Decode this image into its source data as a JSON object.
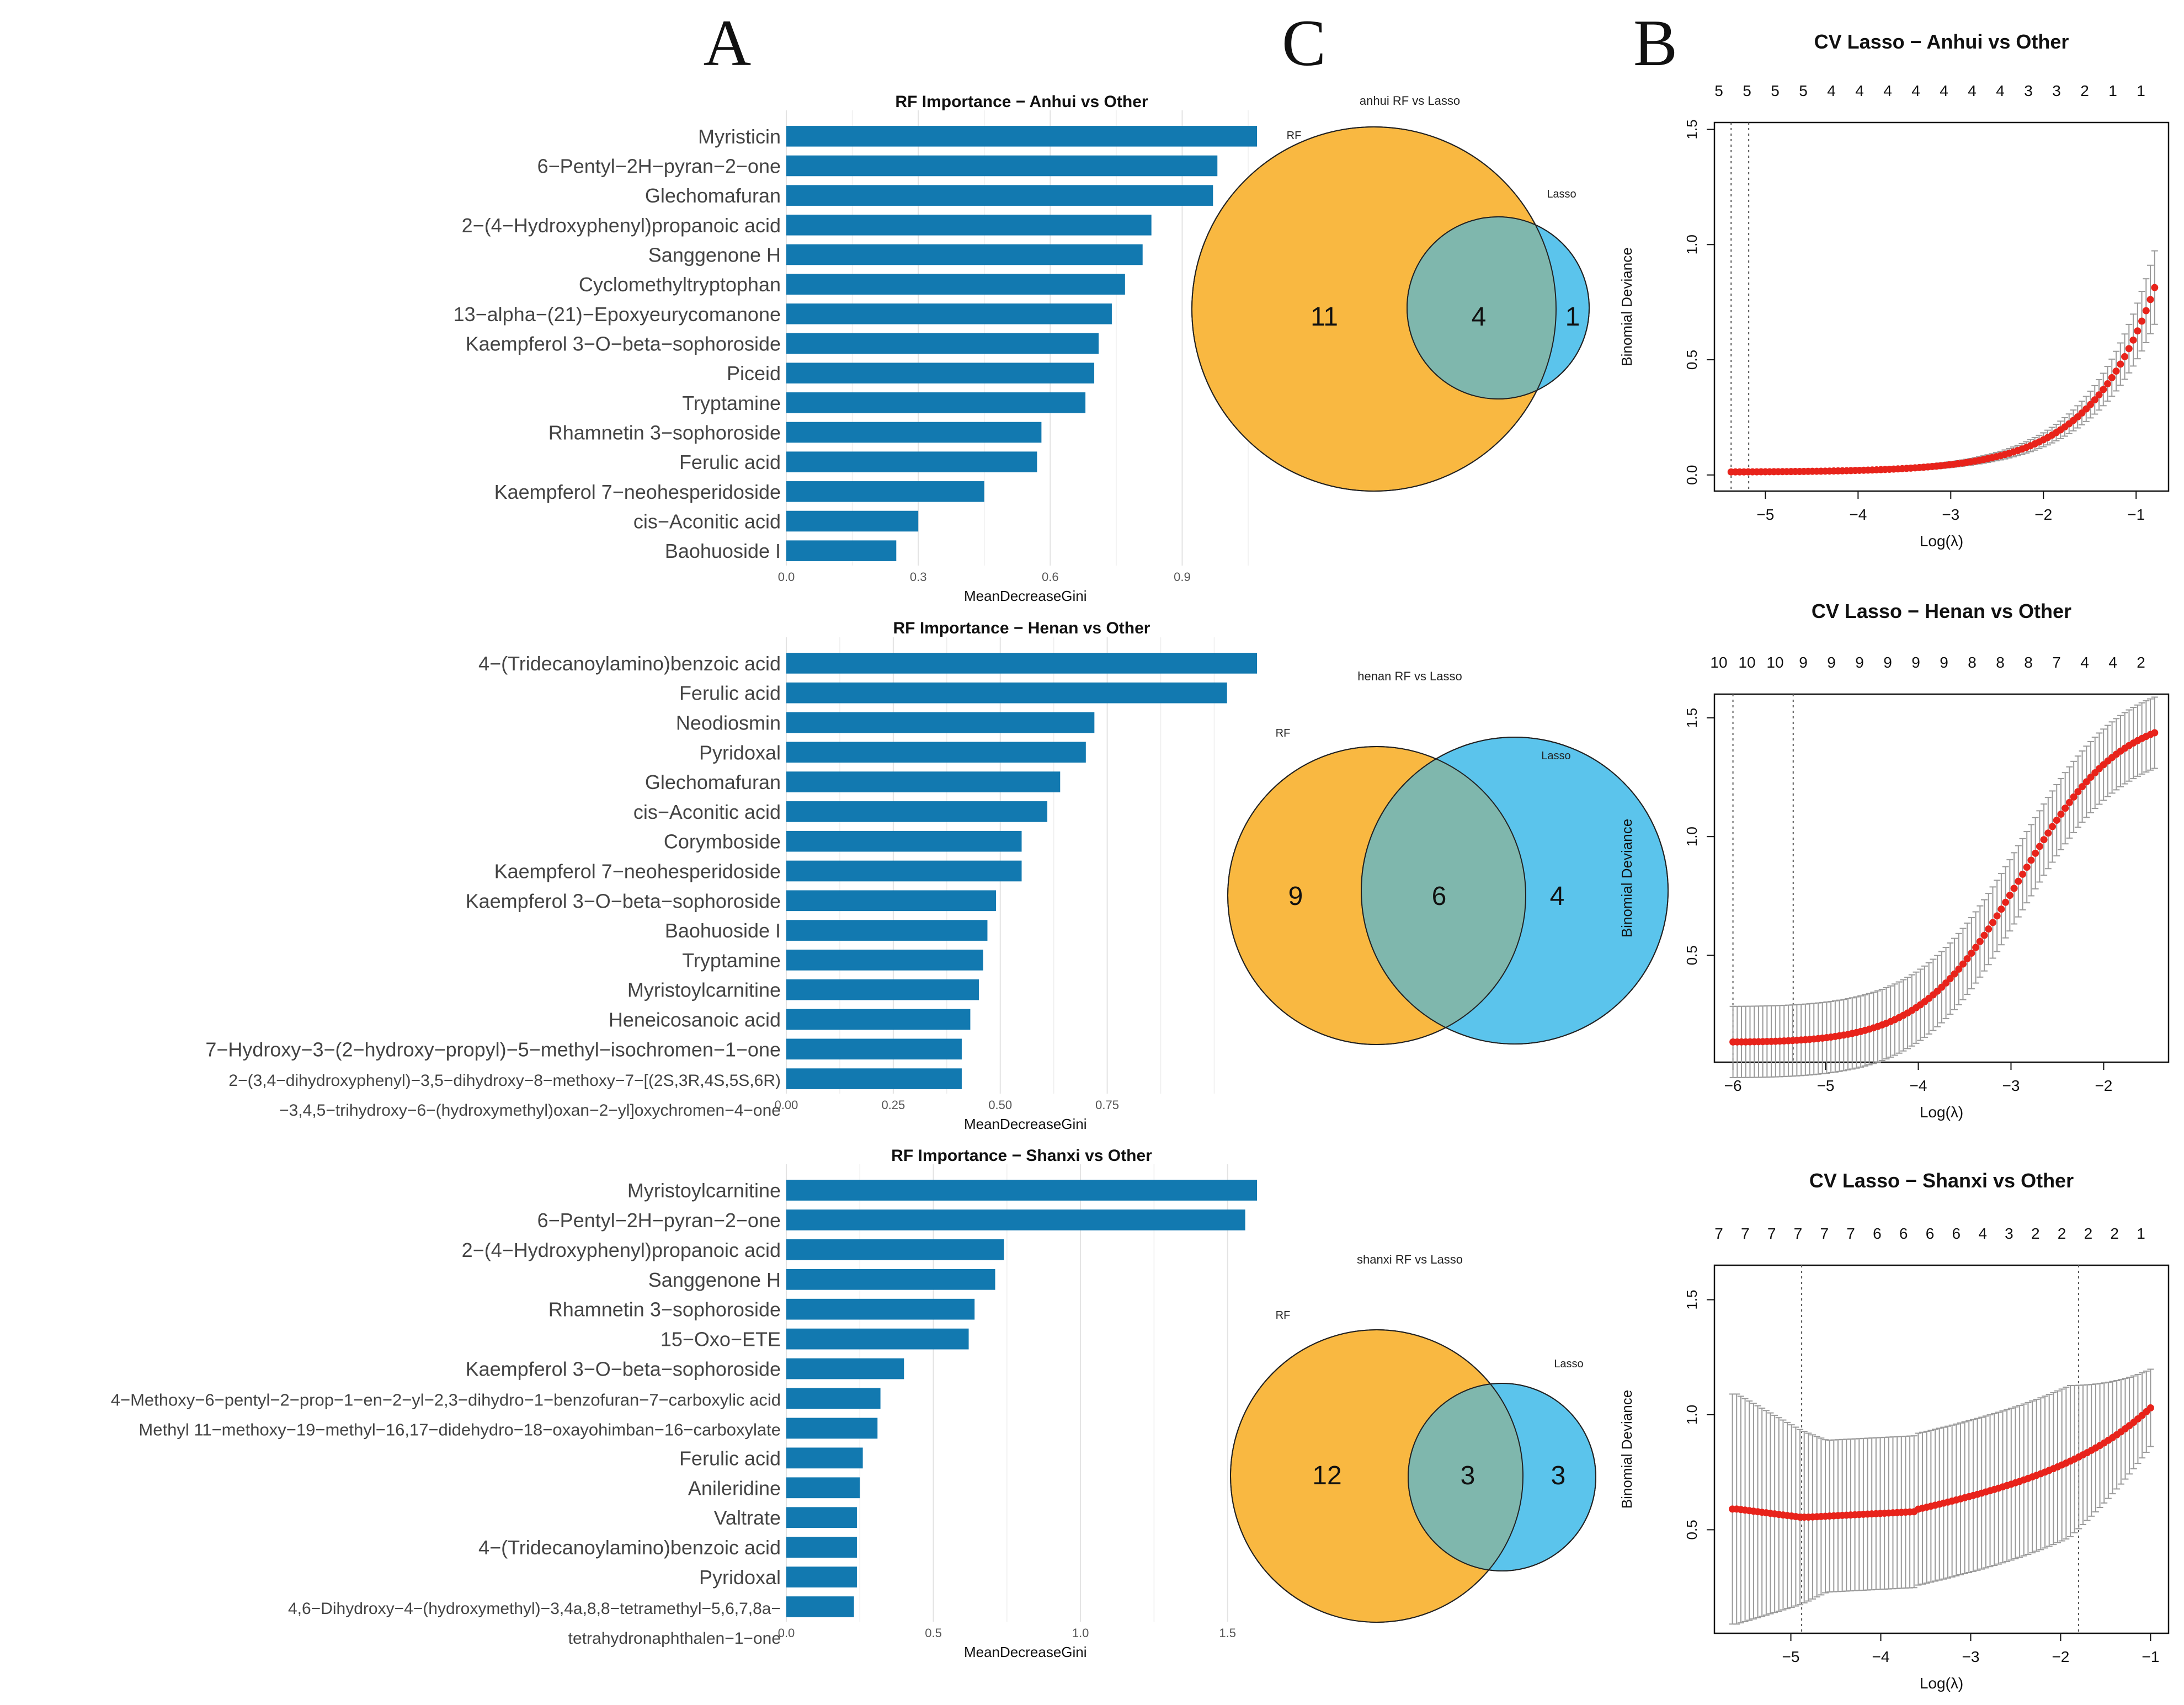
{
  "panel_labels": {
    "A": "A",
    "B": "B",
    "C": "C"
  },
  "colors": {
    "bar": "#1279b0",
    "venn_rf": "#f9b841",
    "venn_lasso": "#5bc4ec",
    "venn_overlap": "#7fb7ad",
    "lasso_point": "#e8231b",
    "errorbar": "#9a9a9a"
  },
  "chart_data": [
    {
      "type": "bar",
      "id": "rf_anhui",
      "title": "RF Importance − Anhui vs Other",
      "xlabel": "MeanDecreaseGini",
      "xlim": [
        0,
        1.07
      ],
      "xticks": [
        0.0,
        0.3,
        0.6,
        0.9
      ],
      "xtick_labels": [
        "0.0",
        "0.3",
        "0.6",
        "0.9"
      ],
      "categories": [
        [
          "Myristicin"
        ],
        [
          "6−Pentyl−2H−pyran−2−one"
        ],
        [
          "Glechomafuran"
        ],
        [
          "2−(4−Hydroxyphenyl)propanoic acid"
        ],
        [
          "Sanggenone H"
        ],
        [
          "Cyclomethyltryptophan"
        ],
        [
          "13−alpha−(21)−Epoxyeurycomanone"
        ],
        [
          "Kaempferol 3−O−beta−sophoroside"
        ],
        [
          "Piceid"
        ],
        [
          "Tryptamine"
        ],
        [
          "Rhamnetin 3−sophoroside"
        ],
        [
          "Ferulic acid"
        ],
        [
          "Kaempferol 7−neohesperidoside"
        ],
        [
          "cis−Aconitic acid"
        ],
        [
          "Baohuoside I"
        ]
      ],
      "values": [
        1.07,
        0.98,
        0.97,
        0.83,
        0.81,
        0.77,
        0.74,
        0.71,
        0.7,
        0.68,
        0.58,
        0.57,
        0.45,
        0.3,
        0.25
      ]
    },
    {
      "type": "bar",
      "id": "rf_henan",
      "title": "RF Importance − Henan vs Other",
      "xlabel": "MeanDecreaseGini",
      "xlim": [
        0,
        1.1
      ],
      "xticks": [
        0.0,
        0.25,
        0.5,
        0.75
      ],
      "xtick_labels": [
        "0.00",
        "0.25",
        "0.50",
        "0.75"
      ],
      "categories": [
        [
          "4−(Tridecanoylamino)benzoic acid"
        ],
        [
          "Ferulic acid"
        ],
        [
          "Neodiosmin"
        ],
        [
          "Pyridoxal"
        ],
        [
          "Glechomafuran"
        ],
        [
          "cis−Aconitic acid"
        ],
        [
          "Corymboside"
        ],
        [
          "Kaempferol 7−neohesperidoside"
        ],
        [
          "Kaempferol 3−O−beta−sophoroside"
        ],
        [
          "Baohuoside I"
        ],
        [
          "Tryptamine"
        ],
        [
          "Myristoylcarnitine"
        ],
        [
          "Heneicosanoic acid"
        ],
        [
          "7−Hydroxy−3−(2−hydroxy−propyl)−5−methyl−isochromen−1−one"
        ],
        [
          "2−(3,4−dihydroxyphenyl)−3,5−dihydroxy−8−methoxy−7−[(2S,3R,4S,5S,6R)",
          "−3,4,5−trihydroxy−6−(hydroxymethyl)oxan−2−yl]oxychromen−4−one"
        ]
      ],
      "values": [
        1.1,
        1.03,
        0.72,
        0.7,
        0.64,
        0.61,
        0.55,
        0.55,
        0.49,
        0.47,
        0.46,
        0.45,
        0.43,
        0.41,
        0.41
      ]
    },
    {
      "type": "bar",
      "id": "rf_shanxi",
      "title": "RF Importance − Shanxi vs Other",
      "xlabel": "MeanDecreaseGini",
      "xlim": [
        0,
        1.6
      ],
      "xticks": [
        0.0,
        0.5,
        1.0,
        1.5
      ],
      "xtick_labels": [
        "0.0",
        "0.5",
        "1.0",
        "1.5"
      ],
      "categories": [
        [
          "Myristoylcarnitine"
        ],
        [
          "6−Pentyl−2H−pyran−2−one"
        ],
        [
          "2−(4−Hydroxyphenyl)propanoic acid"
        ],
        [
          "Sanggenone H"
        ],
        [
          "Rhamnetin 3−sophoroside"
        ],
        [
          "15−Oxo−ETE"
        ],
        [
          "Kaempferol 3−O−beta−sophoroside"
        ],
        [
          "4−Methoxy−6−pentyl−2−prop−1−en−2−yl−2,3−dihydro−1−benzofuran−7−carboxylic acid"
        ],
        [
          "Methyl 11−methoxy−19−methyl−16,17−didehydro−18−oxayohimban−16−carboxylate"
        ],
        [
          "Ferulic acid"
        ],
        [
          "Anileridine"
        ],
        [
          "Valtrate"
        ],
        [
          "4−(Tridecanoylamino)benzoic acid"
        ],
        [
          "Pyridoxal"
        ],
        [
          "4,6−Dihydroxy−4−(hydroxymethyl)−3,4a,8,8−tetramethyl−5,6,7,8a−",
          "tetrahydronaphthalen−1−one"
        ]
      ],
      "values": [
        1.6,
        1.56,
        0.74,
        0.71,
        0.64,
        0.62,
        0.4,
        0.32,
        0.31,
        0.26,
        0.25,
        0.24,
        0.24,
        0.24,
        0.23
      ]
    },
    {
      "type": "venn",
      "id": "venn_anhui",
      "title": "anhui RF vs Lasso",
      "sets": [
        "RF",
        "Lasso"
      ],
      "only_rf": 11,
      "both": 4,
      "only_lasso": 1,
      "labels": {
        "only_rf": "11",
        "both": "4",
        "only_lasso": "1"
      }
    },
    {
      "type": "venn",
      "id": "venn_henan",
      "title": "henan RF vs Lasso",
      "sets": [
        "RF",
        "Lasso"
      ],
      "only_rf": 9,
      "both": 6,
      "only_lasso": 4,
      "labels": {
        "only_rf": "9",
        "both": "6",
        "only_lasso": "4"
      }
    },
    {
      "type": "venn",
      "id": "venn_shanxi",
      "title": "shanxi RF vs Lasso",
      "sets": [
        "RF",
        "Lasso"
      ],
      "only_rf": 12,
      "both": 3,
      "only_lasso": 3,
      "labels": {
        "only_rf": "12",
        "both": "3",
        "only_lasso": "3"
      }
    },
    {
      "type": "scatter",
      "id": "cv_anhui",
      "title": "CV Lasso − Anhui vs Other",
      "xlabel": "Log(λ)",
      "ylabel": "Binomial Deviance",
      "xlim": [
        -5.55,
        -0.65
      ],
      "ylim": [
        -0.07,
        1.53
      ],
      "xticks": [
        -5,
        -4,
        -3,
        -2,
        -1
      ],
      "xtick_labels": [
        "−5",
        "−4",
        "−3",
        "−2",
        "−1"
      ],
      "yticks": [
        0.0,
        0.5,
        1.0,
        1.5
      ],
      "ytick_labels": [
        "0.0",
        "0.5",
        "1.0",
        "1.5"
      ],
      "top_counts": [
        "5",
        "5",
        "5",
        "5",
        "4",
        "4",
        "4",
        "4",
        "4",
        "4",
        "4",
        "3",
        "3",
        "2",
        "1",
        "1"
      ],
      "vlines": [
        -5.37,
        -5.18
      ],
      "curve": {
        "x_range": [
          -5.37,
          -0.8
        ],
        "y0": 0.012,
        "a": 0.043,
        "k": 1.1,
        "ci0": 0.008,
        "ci_k": 0.11
      }
    },
    {
      "type": "scatter",
      "id": "cv_henan",
      "title": "CV Lasso − Henan vs Other",
      "xlabel": "Log(λ)",
      "ylabel": "Binomial Deviance",
      "xlim": [
        -6.2,
        -1.3
      ],
      "ylim": [
        0.05,
        1.6
      ],
      "xticks": [
        -6,
        -5,
        -4,
        -3,
        -2
      ],
      "xtick_labels": [
        "−6",
        "−5",
        "−4",
        "−3",
        "−2"
      ],
      "yticks": [
        0.5,
        1.0,
        1.5
      ],
      "ytick_labels": [
        "0.5",
        "1.0",
        "1.5"
      ],
      "top_counts": [
        "10",
        "10",
        "10",
        "9",
        "9",
        "9",
        "9",
        "9",
        "9",
        "8",
        "8",
        "8",
        "7",
        "4",
        "4",
        "2"
      ],
      "vlines": [
        -6.0,
        -5.35
      ],
      "curve": {
        "x_range": [
          -6.0,
          -1.45
        ],
        "y0": 0.13,
        "amp": 1.3,
        "x0": -2.9,
        "w": 0.55,
        "ci": 0.15
      }
    },
    {
      "type": "scatter",
      "id": "cv_shanxi",
      "title": "CV Lasso − Shanxi vs Other",
      "xlabel": "Log(λ)",
      "ylabel": "Binomial Deviance",
      "xlim": [
        -5.85,
        -0.8
      ],
      "ylim": [
        0.05,
        1.65
      ],
      "xticks": [
        -5,
        -4,
        -3,
        -2,
        -1
      ],
      "xtick_labels": [
        "−5",
        "−4",
        "−3",
        "−2",
        "−1"
      ],
      "yticks": [
        0.5,
        1.0,
        1.5
      ],
      "ytick_labels": [
        "0.5",
        "1.0",
        "1.5"
      ],
      "top_counts": [
        "7",
        "7",
        "7",
        "7",
        "7",
        "7",
        "6",
        "6",
        "6",
        "6",
        "4",
        "3",
        "2",
        "2",
        "2",
        "2",
        "1"
      ],
      "vlines": [
        -4.88,
        -1.8
      ],
      "curve": {
        "x_range": [
          -5.65,
          -1.0
        ],
        "y0": 0.56,
        "ci0": 0.49
      }
    }
  ]
}
